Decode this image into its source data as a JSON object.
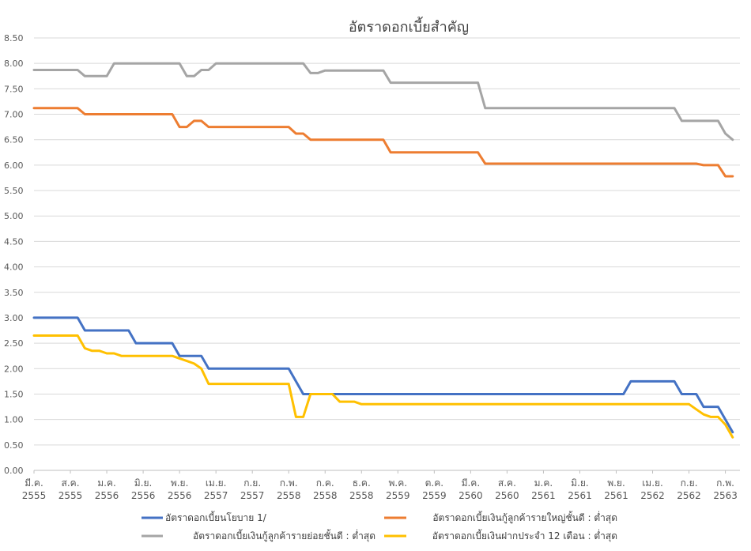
{
  "chart_data": {
    "type": "line",
    "title": "อัตราดอกเบี้ยสำคัญ",
    "ylim": [
      0,
      8.5
    ],
    "ytick_step": 0.5,
    "grid": true,
    "legend_position": "bottom",
    "x_tick_labels": [
      [
        "มี.ค.",
        "2555"
      ],
      [
        "ส.ค.",
        "2555"
      ],
      [
        "ม.ค.",
        "2556"
      ],
      [
        "มิ.ย.",
        "2556"
      ],
      [
        "พ.ย.",
        "2556"
      ],
      [
        "เม.ย.",
        "2557"
      ],
      [
        "ก.ย.",
        "2557"
      ],
      [
        "ก.พ.",
        "2558"
      ],
      [
        "ก.ค.",
        "2558"
      ],
      [
        "ธ.ค.",
        "2558"
      ],
      [
        "พ.ค.",
        "2559"
      ],
      [
        "ต.ค.",
        "2559"
      ],
      [
        "มี.ค.",
        "2560"
      ],
      [
        "ส.ค.",
        "2560"
      ],
      [
        "ม.ค.",
        "2561"
      ],
      [
        "มิ.ย.",
        "2561"
      ],
      [
        "พ.ย.",
        "2561"
      ],
      [
        "เม.ย.",
        "2562"
      ],
      [
        "ก.ย.",
        "2562"
      ],
      [
        "ก.พ.",
        "2563"
      ]
    ],
    "x_tick_month_index": [
      0,
      5,
      10,
      15,
      20,
      25,
      30,
      35,
      40,
      45,
      50,
      55,
      60,
      65,
      70,
      75,
      80,
      85,
      90,
      95
    ],
    "x_range_months": [
      0,
      97
    ],
    "series": [
      {
        "name": "อัตราดอกเบี้ยนโยบาย 1/",
        "color": "#4472C4",
        "points": [
          [
            0,
            3.0
          ],
          [
            6,
            3.0
          ],
          [
            7,
            2.75
          ],
          [
            13,
            2.75
          ],
          [
            14,
            2.5
          ],
          [
            19,
            2.5
          ],
          [
            20,
            2.25
          ],
          [
            23,
            2.25
          ],
          [
            24,
            2.0
          ],
          [
            35,
            2.0
          ],
          [
            37,
            1.5
          ],
          [
            81,
            1.5
          ],
          [
            82,
            1.75
          ],
          [
            88,
            1.75
          ],
          [
            89,
            1.5
          ],
          [
            91,
            1.5
          ],
          [
            92,
            1.25
          ],
          [
            94,
            1.25
          ],
          [
            96,
            0.75
          ]
        ]
      },
      {
        "name": "อัตราดอกเบี้ยเงินกู้ลูกค้ารายใหญ่ชั้นดี : ต่ำสุด",
        "color": "#ED7D31",
        "points": [
          [
            0,
            7.12
          ],
          [
            6,
            7.12
          ],
          [
            7,
            7.0
          ],
          [
            19,
            7.0
          ],
          [
            20,
            6.75
          ],
          [
            21,
            6.75
          ],
          [
            22,
            6.87
          ],
          [
            23,
            6.87
          ],
          [
            24,
            6.75
          ],
          [
            35,
            6.75
          ],
          [
            36,
            6.62
          ],
          [
            37,
            6.62
          ],
          [
            38,
            6.5
          ],
          [
            48,
            6.5
          ],
          [
            49,
            6.25
          ],
          [
            61,
            6.25
          ],
          [
            62,
            6.03
          ],
          [
            91,
            6.03
          ],
          [
            92,
            6.0
          ],
          [
            94,
            6.0
          ],
          [
            95,
            5.78
          ],
          [
            96,
            5.78
          ]
        ]
      },
      {
        "name": "อัตราดอกเบี้ยเงินกู้ลูกค้ารายย่อยชั้นดี : ต่ำสุด",
        "color": "#A5A5A5",
        "points": [
          [
            0,
            7.87
          ],
          [
            6,
            7.87
          ],
          [
            7,
            7.75
          ],
          [
            10,
            7.75
          ],
          [
            11,
            8.0
          ],
          [
            20,
            8.0
          ],
          [
            21,
            7.75
          ],
          [
            22,
            7.75
          ],
          [
            23,
            7.87
          ],
          [
            24,
            7.87
          ],
          [
            25,
            8.0
          ],
          [
            37,
            8.0
          ],
          [
            38,
            7.81
          ],
          [
            39,
            7.81
          ],
          [
            40,
            7.86
          ],
          [
            48,
            7.86
          ],
          [
            49,
            7.62
          ],
          [
            61,
            7.62
          ],
          [
            62,
            7.12
          ],
          [
            88,
            7.12
          ],
          [
            89,
            6.87
          ],
          [
            94,
            6.87
          ],
          [
            95,
            6.62
          ],
          [
            96,
            6.5
          ]
        ]
      },
      {
        "name": "อัตราดอกเบี้ยเงินฝากประจำ 12 เดือน : ต่ำสุด",
        "color": "#FFC000",
        "points": [
          [
            0,
            2.65
          ],
          [
            6,
            2.65
          ],
          [
            7,
            2.4
          ],
          [
            8,
            2.35
          ],
          [
            9,
            2.35
          ],
          [
            10,
            2.3
          ],
          [
            11,
            2.3
          ],
          [
            12,
            2.25
          ],
          [
            19,
            2.25
          ],
          [
            20,
            2.2
          ],
          [
            21,
            2.15
          ],
          [
            22,
            2.1
          ],
          [
            23,
            2.0
          ],
          [
            24,
            1.7
          ],
          [
            35,
            1.7
          ],
          [
            36,
            1.05
          ],
          [
            37,
            1.05
          ],
          [
            38,
            1.5
          ],
          [
            41,
            1.5
          ],
          [
            42,
            1.35
          ],
          [
            44,
            1.35
          ],
          [
            45,
            1.3
          ],
          [
            90,
            1.3
          ],
          [
            91,
            1.2
          ],
          [
            92,
            1.1
          ],
          [
            93,
            1.05
          ],
          [
            94,
            1.05
          ],
          [
            95,
            0.9
          ],
          [
            96,
            0.65
          ]
        ]
      }
    ]
  }
}
